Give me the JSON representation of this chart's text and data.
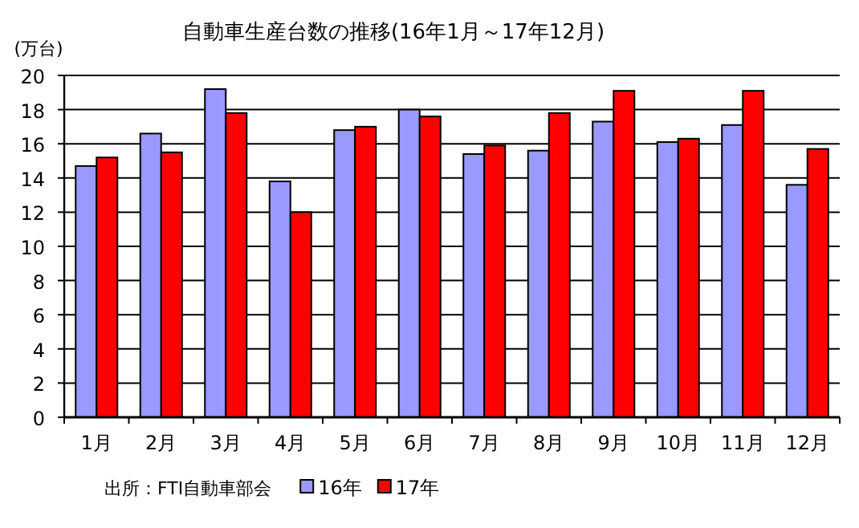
{
  "chart_data": {
    "type": "bar",
    "title": "自動車生産台数の推移(16年1月～17年12月)",
    "ylabel": "(万台)",
    "categories": [
      "1月",
      "2月",
      "3月",
      "4月",
      "5月",
      "6月",
      "7月",
      "8月",
      "9月",
      "10月",
      "11月",
      "12月"
    ],
    "series": [
      {
        "name": "16年",
        "color": "#9999ff",
        "values": [
          14.7,
          16.6,
          19.2,
          13.8,
          16.8,
          18.0,
          15.4,
          15.6,
          17.3,
          16.1,
          17.1,
          13.6
        ]
      },
      {
        "name": "17年",
        "color": "#ff0000",
        "values": [
          15.2,
          15.5,
          17.8,
          12.0,
          17.0,
          17.6,
          15.9,
          17.8,
          19.1,
          16.3,
          19.1,
          15.7
        ]
      }
    ],
    "ylim": [
      0,
      20
    ],
    "yticks": [
      0,
      2,
      4,
      6,
      8,
      10,
      12,
      14,
      16,
      18,
      20
    ],
    "grid": "y",
    "legend": "bottom",
    "annotations": [
      "出所：FTI自動車部会"
    ]
  }
}
